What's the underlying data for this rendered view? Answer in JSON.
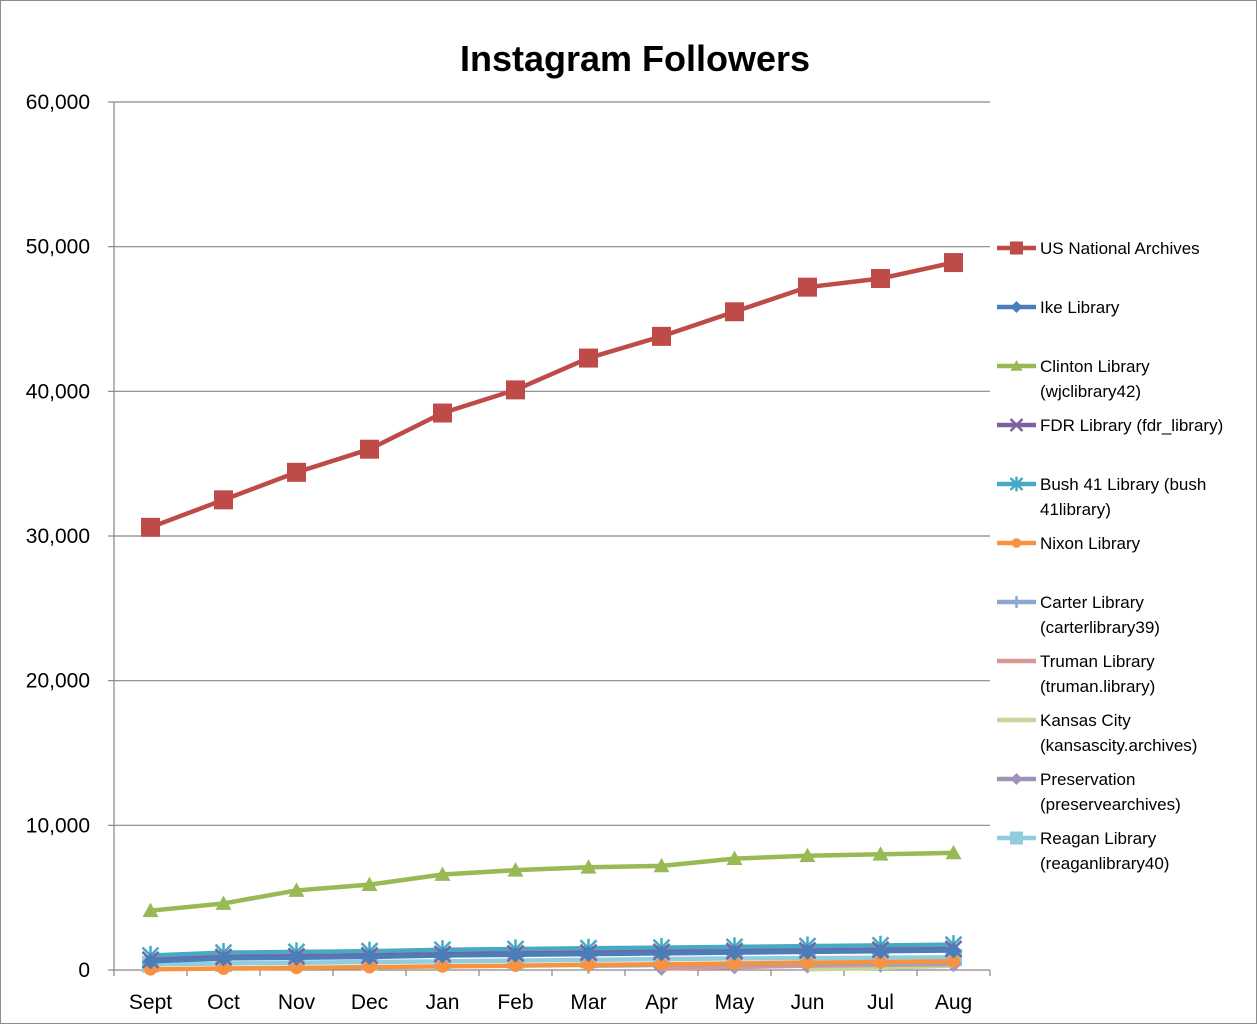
{
  "chart_data": {
    "type": "line",
    "title": "Instagram Followers",
    "xlabel": "",
    "ylabel": "",
    "ylim": [
      0,
      60000
    ],
    "yticks": [
      0,
      10000,
      20000,
      30000,
      40000,
      50000,
      60000
    ],
    "ytick_labels": [
      "0",
      "10,000",
      "20,000",
      "30,000",
      "40,000",
      "50,000",
      "60,000"
    ],
    "grid": "horizontal",
    "legend_position": "right",
    "categories": [
      "Sept",
      "Oct",
      "Nov",
      "Dec",
      "Jan",
      "Feb",
      "Mar",
      "Apr",
      "May",
      "Jun",
      "Jul",
      "Aug"
    ],
    "series": [
      {
        "name": "US National Archives",
        "color": "#be4b48",
        "marker": "square",
        "values": [
          30600,
          32500,
          34400,
          36000,
          38500,
          40100,
          42300,
          43800,
          45500,
          47200,
          47800,
          48900
        ]
      },
      {
        "name": "Ike Library",
        "color": "#4a7ebb",
        "marker": "diamond",
        "values": [
          600,
          800,
          850,
          900,
          1000,
          1050,
          1100,
          1150,
          1200,
          1250,
          1300,
          1350
        ]
      },
      {
        "name": "Clinton Library (wjclibrary42)",
        "color": "#98b954",
        "marker": "triangle",
        "values": [
          4100,
          4600,
          5500,
          5900,
          6600,
          6900,
          7100,
          7200,
          7700,
          7900,
          8000,
          8100
        ]
      },
      {
        "name": "FDR Library (fdr_library)",
        "color": "#7d60a0",
        "marker": "x",
        "values": [
          700,
          900,
          950,
          1000,
          1100,
          1150,
          1200,
          1250,
          1300,
          1350,
          1400,
          1450
        ]
      },
      {
        "name": "Bush 41 Library (bush 41library)",
        "color": "#46aac5",
        "marker": "star",
        "values": [
          1000,
          1200,
          1250,
          1300,
          1400,
          1450,
          1500,
          1550,
          1600,
          1650,
          1700,
          1750
        ]
      },
      {
        "name": "Nixon Library",
        "color": "#f69240",
        "marker": "circle",
        "values": [
          50,
          100,
          150,
          200,
          250,
          300,
          350,
          400,
          450,
          500,
          550,
          600
        ]
      },
      {
        "name": "Carter Library (carterlibrary39)",
        "color": "#8fa7d0",
        "marker": "plus",
        "values": [
          null,
          null,
          null,
          null,
          null,
          null,
          300,
          350,
          400,
          420,
          450,
          480
        ]
      },
      {
        "name": "Truman Library (truman.library)",
        "color": "#d99694",
        "marker": "none",
        "values": [
          null,
          null,
          null,
          null,
          null,
          null,
          null,
          100,
          200,
          300,
          350,
          400
        ]
      },
      {
        "name": "Kansas City (kansascity.archives)",
        "color": "#c3d69b",
        "marker": "none",
        "values": [
          null,
          null,
          null,
          null,
          null,
          null,
          null,
          null,
          null,
          50,
          150,
          300
        ]
      },
      {
        "name": "Preservation (preservearchives)",
        "color": "#a093b7",
        "marker": "diamond",
        "values": [
          null,
          null,
          null,
          null,
          null,
          null,
          null,
          150,
          250,
          300,
          350,
          400
        ]
      },
      {
        "name": "Reagan Library (reaganlibrary40)",
        "color": "#92cddc",
        "marker": "square",
        "values": [
          400,
          450,
          500,
          550,
          600,
          650,
          700,
          750,
          800,
          820,
          850,
          870
        ]
      }
    ],
    "legend_labels": [
      [
        "US National Archives"
      ],
      [
        "Ike Library"
      ],
      [
        "Clinton Library",
        "(wjclibrary42)"
      ],
      [
        "FDR Library (fdr_library)"
      ],
      [
        "Bush 41 Library (bush",
        "41library)"
      ],
      [
        "Nixon Library"
      ],
      [
        "Carter Library",
        "(carterlibrary39)"
      ],
      [
        "Truman Library",
        "(truman.library)"
      ],
      [
        "Kansas City",
        "(kansascity.archives)"
      ],
      [
        "Preservation",
        "(preservearchives)"
      ],
      [
        "Reagan Library",
        "(reaganlibrary40)"
      ]
    ]
  }
}
